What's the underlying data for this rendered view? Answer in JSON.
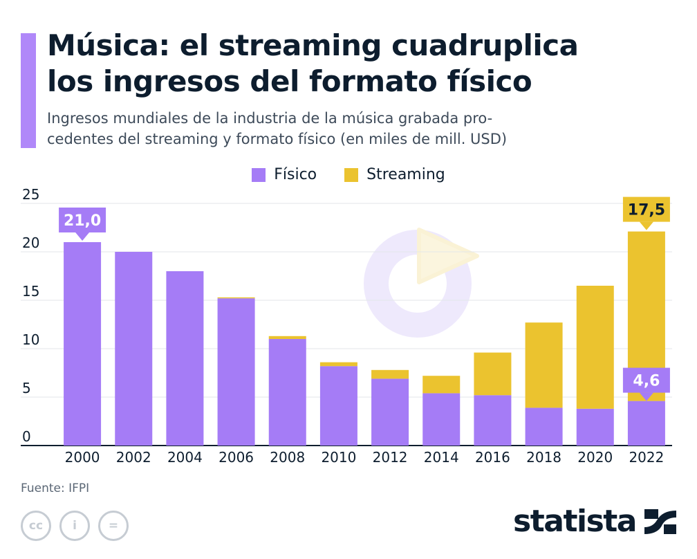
{
  "header": {
    "title_line1": "Música: el streaming cuadruplica",
    "title_line2": "los ingresos del formato físico",
    "subtitle_line1": "Ingresos mundiales de la industria de la música grabada pro-",
    "subtitle_line2": "cedentes del streaming y formato físico (en miles de mill. USD)"
  },
  "legend": {
    "fisico": "Físico",
    "streaming": "Streaming"
  },
  "colors": {
    "fisico": "#a57cf6",
    "streaming": "#ebc32f",
    "accent": "#b088f9",
    "text": "#0d1d2e"
  },
  "chart_data": {
    "type": "bar",
    "stacked": true,
    "categories": [
      "2000",
      "2002",
      "2004",
      "2006",
      "2008",
      "2010",
      "2012",
      "2014",
      "2016",
      "2018",
      "2020",
      "2022"
    ],
    "series": [
      {
        "name": "Físico",
        "values": [
          21.0,
          20.0,
          18.0,
          15.2,
          11.0,
          8.2,
          6.9,
          5.4,
          5.2,
          3.9,
          3.8,
          4.6
        ]
      },
      {
        "name": "Streaming",
        "values": [
          0.0,
          0.0,
          0.0,
          0.1,
          0.3,
          0.4,
          0.9,
          1.8,
          4.4,
          8.8,
          12.7,
          17.5
        ]
      }
    ],
    "ylim": [
      0,
      25
    ],
    "yticks": [
      0,
      5,
      10,
      15,
      20,
      25
    ],
    "grid": true,
    "annotations": [
      {
        "category": "2000",
        "series": "Físico",
        "label": "21,0"
      },
      {
        "category": "2022",
        "series": "Streaming",
        "label": "17,5"
      },
      {
        "category": "2022",
        "series": "Físico",
        "label": "4,6"
      }
    ]
  },
  "footer": {
    "source": "Fuente: IFPI",
    "license_icons": [
      "cc-icon",
      "info-icon",
      "equals-icon"
    ],
    "cc_label": "cc",
    "info_label": "i",
    "equals_label": "=",
    "brand": "statista"
  }
}
